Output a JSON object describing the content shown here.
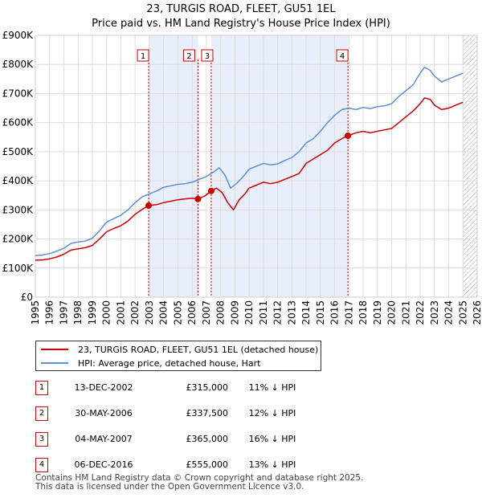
{
  "header": {
    "title": "23, TURGIS ROAD, FLEET, GU51 1EL",
    "subtitle": "Price paid vs. HM Land Registry's House Price Index (HPI)"
  },
  "legend": {
    "property": "23, TURGIS ROAD, FLEET, GU51 1EL (detached house)",
    "hpi": "HPI: Average price, detached house, Hart"
  },
  "colors": {
    "property": "#cc0000",
    "hpi": "#5b8fd6",
    "shade": "#e8eefa",
    "marker": "#cc0000"
  },
  "sales": [
    {
      "num": "1",
      "date": "13-DEC-2002",
      "price": "£315,000",
      "hpi": "11% ↓ HPI"
    },
    {
      "num": "2",
      "date": "30-MAY-2006",
      "price": "£337,500",
      "hpi": "12% ↓ HPI"
    },
    {
      "num": "3",
      "date": "04-MAY-2007",
      "price": "£365,000",
      "hpi": "16% ↓ HPI"
    },
    {
      "num": "4",
      "date": "06-DEC-2016",
      "price": "£555,000",
      "hpi": "13% ↓ HPI"
    }
  ],
  "footer": {
    "line1": "Contains HM Land Registry data © Crown copyright and database right 2025.",
    "line2": "This data is licensed under the Open Government Licence v3.0."
  },
  "chart_data": {
    "type": "line",
    "title": "Price paid vs. HM Land Registry's House Price Index (HPI)",
    "xlim": [
      1995,
      2026
    ],
    "ylim": [
      0,
      900000
    ],
    "ytick_labels": [
      "£0",
      "£100K",
      "£200K",
      "£300K",
      "£400K",
      "£500K",
      "£600K",
      "£700K",
      "£800K",
      "£900K"
    ],
    "ytick_values": [
      0,
      100000,
      200000,
      300000,
      400000,
      500000,
      600000,
      700000,
      800000,
      900000
    ],
    "xtick_labels": [
      "1995",
      "1996",
      "1997",
      "1998",
      "1999",
      "2000",
      "2001",
      "2002",
      "2003",
      "2004",
      "2005",
      "2006",
      "2007",
      "2008",
      "2009",
      "2010",
      "2011",
      "2012",
      "2013",
      "2014",
      "2015",
      "2016",
      "2017",
      "2018",
      "2019",
      "2020",
      "2021",
      "2022",
      "2023",
      "2024",
      "2025",
      "2026"
    ],
    "shaded_ranges": [
      [
        2002.95,
        2006.41
      ],
      [
        2007.34,
        2016.93
      ]
    ],
    "forecast_start": 2025.0,
    "sale_markers": [
      {
        "label": "1",
        "x": 2002.95,
        "y": 315000
      },
      {
        "label": "2",
        "x": 2006.41,
        "y": 337500
      },
      {
        "label": "3",
        "x": 2007.34,
        "y": 365000
      },
      {
        "label": "4",
        "x": 2016.93,
        "y": 555000
      }
    ],
    "series": [
      {
        "name": "HPI: Average price, detached house, Hart",
        "x": [
          1995,
          1995.5,
          1996,
          1996.5,
          1997,
          1997.5,
          1998,
          1998.5,
          1999,
          1999.5,
          2000,
          2000.5,
          2001,
          2001.5,
          2002,
          2002.5,
          2003,
          2003.5,
          2004,
          2004.5,
          2005,
          2005.5,
          2006,
          2006.5,
          2007,
          2007.5,
          2007.9,
          2008.3,
          2008.7,
          2009.1,
          2009.5,
          2010,
          2010.5,
          2011,
          2011.5,
          2012,
          2012.5,
          2013,
          2013.5,
          2014,
          2014.5,
          2015,
          2015.5,
          2016,
          2016.5,
          2017,
          2017.5,
          2018,
          2018.5,
          2019,
          2019.5,
          2020,
          2020.5,
          2021,
          2021.5,
          2022,
          2022.3,
          2022.7,
          2023,
          2023.5,
          2024,
          2024.5,
          2025
        ],
        "values": [
          143000,
          145000,
          150000,
          158000,
          168000,
          185000,
          190000,
          193000,
          203000,
          228000,
          258000,
          270000,
          282000,
          300000,
          325000,
          345000,
          355000,
          365000,
          378000,
          383000,
          388000,
          390000,
          395000,
          405000,
          415000,
          430000,
          445000,
          420000,
          375000,
          390000,
          410000,
          440000,
          450000,
          460000,
          455000,
          458000,
          470000,
          480000,
          500000,
          530000,
          545000,
          570000,
          600000,
          625000,
          645000,
          650000,
          645000,
          652000,
          648000,
          655000,
          658000,
          665000,
          690000,
          710000,
          730000,
          770000,
          790000,
          780000,
          760000,
          740000,
          750000,
          760000,
          770000
        ]
      },
      {
        "name": "23, TURGIS ROAD, FLEET, GU51 1EL (detached house)",
        "x": [
          1995,
          1995.5,
          1996,
          1996.5,
          1997,
          1997.5,
          1998,
          1998.5,
          1999,
          1999.5,
          2000,
          2000.5,
          2001,
          2001.5,
          2002,
          2002.5,
          2002.95,
          2003.5,
          2004,
          2004.5,
          2005,
          2005.5,
          2006,
          2006.41,
          2006.9,
          2007.34,
          2007.7,
          2008.1,
          2008.5,
          2008.9,
          2009.3,
          2009.7,
          2010,
          2010.5,
          2011,
          2011.5,
          2012,
          2012.5,
          2013,
          2013.5,
          2014,
          2014.5,
          2015,
          2015.5,
          2016,
          2016.5,
          2016.93,
          2017.5,
          2018,
          2018.5,
          2019,
          2019.5,
          2020,
          2020.5,
          2021,
          2021.5,
          2022,
          2022.3,
          2022.7,
          2023,
          2023.5,
          2024,
          2024.5,
          2025
        ],
        "values": [
          127000,
          128000,
          132000,
          138000,
          148000,
          162000,
          166000,
          170000,
          178000,
          200000,
          225000,
          236000,
          246000,
          262000,
          285000,
          302000,
          315000,
          318000,
          325000,
          330000,
          335000,
          338000,
          340000,
          337500,
          348000,
          365000,
          375000,
          360000,
          325000,
          300000,
          335000,
          355000,
          375000,
          385000,
          395000,
          390000,
          395000,
          405000,
          415000,
          425000,
          460000,
          475000,
          490000,
          505000,
          530000,
          545000,
          555000,
          565000,
          570000,
          565000,
          570000,
          575000,
          580000,
          600000,
          620000,
          640000,
          665000,
          685000,
          680000,
          660000,
          645000,
          650000,
          660000,
          670000
        ]
      }
    ]
  }
}
